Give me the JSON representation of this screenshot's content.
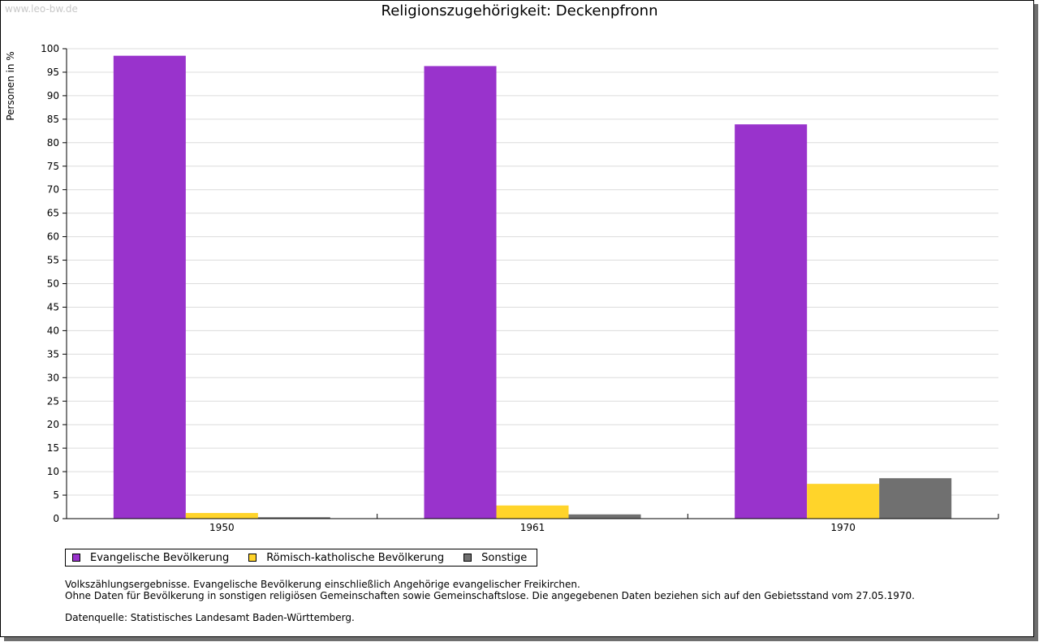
{
  "watermark": "www.leo-bw.de",
  "notes": {
    "line1": "Volkszählungsergebnisse. Evangelische Bevölkerung einschließlich Angehörige evangelischer Freikirchen.",
    "line2": "Ohne Daten für Bevölkerung in sonstigen religiösen Gemeinschaften sowie Gemeinschaftslose. Die angegebenen Daten beziehen sich auf den Gebietsstand vom 27.05.1970.",
    "source": "Datenquelle: Statistisches Landesamt Baden-Württemberg."
  },
  "chart_data": {
    "type": "bar",
    "title": "Religionszugehörigkeit: Deckenpfronn",
    "xlabel": "",
    "ylabel": "Personen in %",
    "ylim": [
      0,
      100
    ],
    "ytick_step": 5,
    "grid": true,
    "legend_position": "bottom-left",
    "categories": [
      "1950",
      "1961",
      "1970"
    ],
    "series": [
      {
        "name": "Evangelische Bevölkerung",
        "color": "#9933cc",
        "values": [
          98.5,
          96.3,
          83.9
        ]
      },
      {
        "name": "Römisch-katholische Bevölkerung",
        "color": "#ffd42a",
        "values": [
          1.2,
          2.8,
          7.4
        ]
      },
      {
        "name": "Sonstige",
        "color": "#707070",
        "values": [
          0.3,
          0.9,
          8.6
        ]
      }
    ]
  }
}
